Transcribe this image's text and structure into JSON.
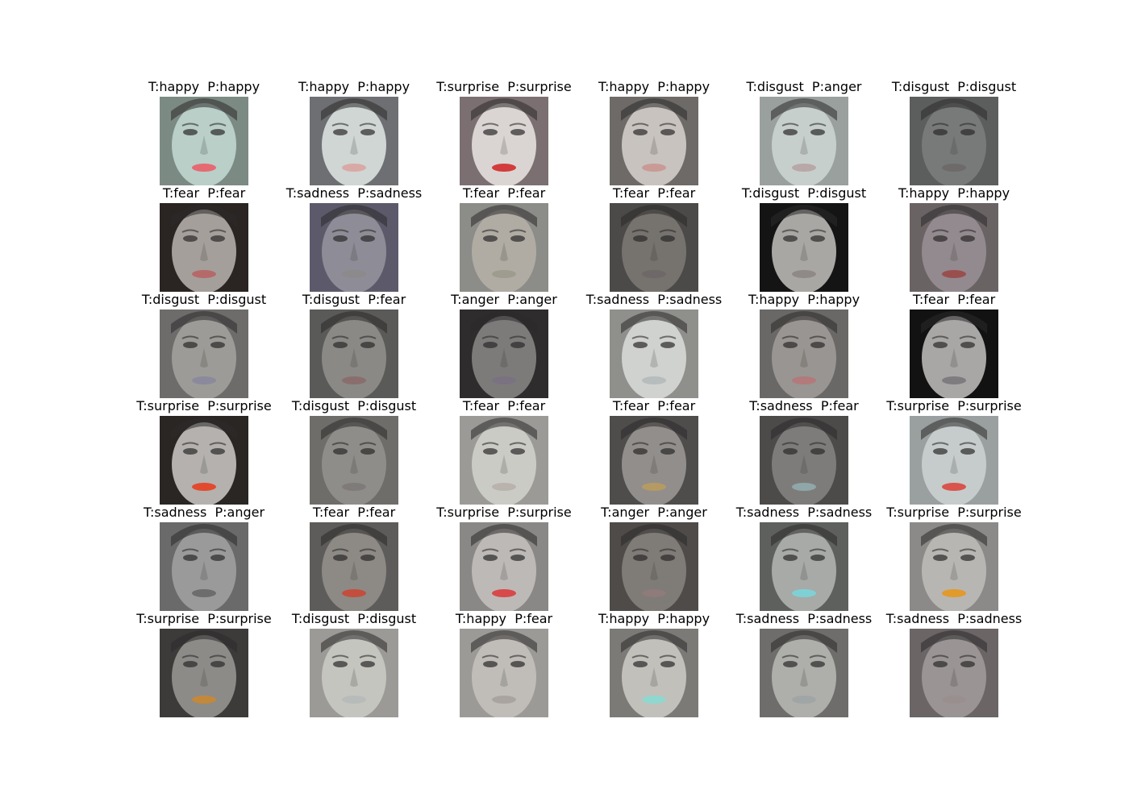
{
  "rows": [
    [
      {
        "t": "T:happy",
        "p": "P:happy",
        "tone": "#b9cfc8",
        "bg": "#7c8a84",
        "mouth": "#e56a72"
      },
      {
        "t": "T:happy",
        "p": "P:happy",
        "tone": "#cfd6d4",
        "bg": "#6d6f72",
        "mouth": "#d9a9a6"
      },
      {
        "t": "T:surprise",
        "p": "P:surprise",
        "tone": "#dad5d3",
        "bg": "#7b6f71",
        "mouth": "#d33c3c"
      },
      {
        "t": "T:happy",
        "p": "P:happy",
        "tone": "#c8c3be",
        "bg": "#6d6a67",
        "mouth": "#c99b96"
      },
      {
        "t": "T:disgust",
        "p": "P:anger",
        "tone": "#c7cfcd",
        "bg": "#9aa09e",
        "mouth": "#b8a8a8"
      },
      {
        "t": "T:disgust",
        "p": "P:disgust",
        "tone": "#777a79",
        "bg": "#5c5e5d",
        "mouth": "#6f6a6a"
      }
    ],
    [
      {
        "t": "T:fear",
        "p": "P:fear",
        "tone": "#a59f9b",
        "bg": "#2a2522",
        "mouth": "#b56a6a"
      },
      {
        "t": "T:sadness",
        "p": "P:sadness",
        "tone": "#8e8c96",
        "bg": "#5c5a6a",
        "mouth": "#8c8a8a"
      },
      {
        "t": "T:fear",
        "p": "P:fear",
        "tone": "#b0aca4",
        "bg": "#8c8c88",
        "mouth": "#9e9b8f"
      },
      {
        "t": "T:fear",
        "p": "P:fear",
        "tone": "#76726e",
        "bg": "#4b4a48",
        "mouth": "#6e6868"
      },
      {
        "t": "T:disgust",
        "p": "P:disgust",
        "tone": "#a9a7a4",
        "bg": "#141414",
        "mouth": "#8f8a88"
      },
      {
        "t": "T:happy",
        "p": "P:happy",
        "tone": "#938a8f",
        "bg": "#6a6364",
        "mouth": "#9a4f4f"
      }
    ],
    [
      {
        "t": "T:disgust",
        "p": "P:disgust",
        "tone": "#9d9b97",
        "bg": "#6e6c6a",
        "mouth": "#8a8a9c"
      },
      {
        "t": "T:disgust",
        "p": "P:fear",
        "tone": "#8a8985",
        "bg": "#5a5a58",
        "mouth": "#8a6e6e"
      },
      {
        "t": "T:anger",
        "p": "P:anger",
        "tone": "#7d7b7a",
        "bg": "#2e2c2c",
        "mouth": "#7a7280"
      },
      {
        "t": "T:sadness",
        "p": "P:sadness",
        "tone": "#cfd2cf",
        "bg": "#8f8f8c",
        "mouth": "#b7bcbc"
      },
      {
        "t": "T:happy",
        "p": "P:happy",
        "tone": "#999592",
        "bg": "#6a6867",
        "mouth": "#b27a7a"
      },
      {
        "t": "T:fear",
        "p": "P:fear",
        "tone": "#a9a7a6",
        "bg": "#121212",
        "mouth": "#7f7c80"
      }
    ],
    [
      {
        "t": "T:surprise",
        "p": "P:surprise",
        "tone": "#b4b1ae",
        "bg": "#2a2624",
        "mouth": "#e24a2e"
      },
      {
        "t": "T:disgust",
        "p": "P:disgust",
        "tone": "#8f8d89",
        "bg": "#6f6d6a",
        "mouth": "#7f7b7a"
      },
      {
        "t": "T:fear",
        "p": "P:fear",
        "tone": "#cbcbc5",
        "bg": "#9b9a96",
        "mouth": "#b8b3ad"
      },
      {
        "t": "T:fear",
        "p": "P:fear",
        "tone": "#928e8b",
        "bg": "#4f4d4c",
        "mouth": "#b59a63"
      },
      {
        "t": "T:sadness",
        "p": "P:fear",
        "tone": "#7e7c7a",
        "bg": "#4d4b4a",
        "mouth": "#8fa7a8"
      },
      {
        "t": "T:surprise",
        "p": "P:surprise",
        "tone": "#c6cccb",
        "bg": "#9aa09f",
        "mouth": "#d8544c"
      }
    ],
    [
      {
        "t": "T:sadness",
        "p": "P:anger",
        "tone": "#9a9a9a",
        "bg": "#6a6a6a",
        "mouth": "#6d6d6d"
      },
      {
        "t": "T:fear",
        "p": "P:fear",
        "tone": "#8d8985",
        "bg": "#5e5c5a",
        "mouth": "#c44e3e"
      },
      {
        "t": "T:surprise",
        "p": "P:surprise",
        "tone": "#bdb9b6",
        "bg": "#8a8886",
        "mouth": "#d8494b"
      },
      {
        "t": "T:anger",
        "p": "P:anger",
        "tone": "#7f7b77",
        "bg": "#4e4b49",
        "mouth": "#8e7b7a"
      },
      {
        "t": "T:sadness",
        "p": "P:sadness",
        "tone": "#a7aaa7",
        "bg": "#5e605e",
        "mouth": "#7fd0d4"
      },
      {
        "t": "T:surprise",
        "p": "P:surprise",
        "tone": "#b8b6b3",
        "bg": "#8b8a88",
        "mouth": "#e19a2c"
      }
    ],
    [
      {
        "t": "T:surprise",
        "p": "P:surprise",
        "tone": "#8d8b88",
        "bg": "#3d3b3a",
        "mouth": "#c4883a"
      },
      {
        "t": "T:disgust",
        "p": "P:disgust",
        "tone": "#c5c5c0",
        "bg": "#9b9a96",
        "mouth": "#b7bbb9"
      },
      {
        "t": "T:happy",
        "p": "P:fear",
        "tone": "#c0bdb9",
        "bg": "#9c9a97",
        "mouth": "#a9a4a0"
      },
      {
        "t": "T:happy",
        "p": "P:happy",
        "tone": "#c1c0bb",
        "bg": "#7b7a77",
        "mouth": "#8fd8cf"
      },
      {
        "t": "T:sadness",
        "p": "P:sadness",
        "tone": "#aeaeab",
        "bg": "#6e6d6b",
        "mouth": "#9fa6a5"
      },
      {
        "t": "T:sadness",
        "p": "P:sadness",
        "tone": "#9a9494",
        "bg": "#6b6566",
        "mouth": "#9a8f8f"
      }
    ]
  ]
}
